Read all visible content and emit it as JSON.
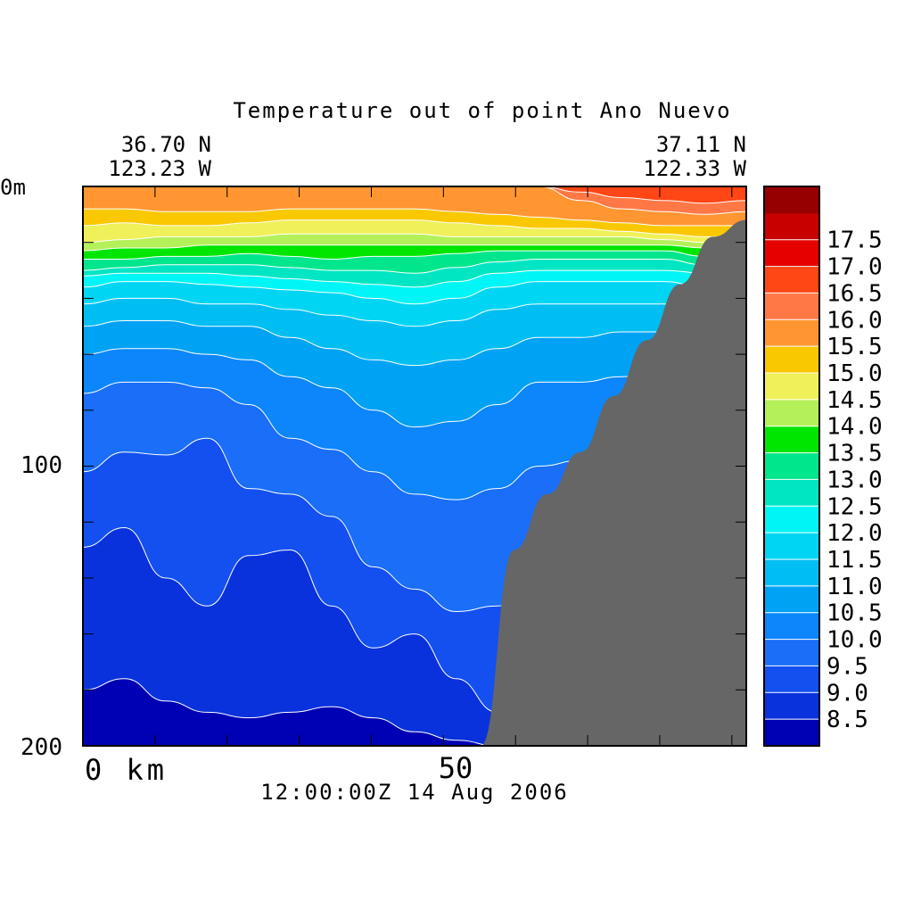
{
  "chart_data": {
    "type": "heatmap",
    "title": "Temperature out of point Ano Nuevo",
    "start_lat": "36.70 N",
    "start_lon": "123.23 W",
    "end_lat": "37.11 N",
    "end_lon": "122.33 W",
    "timestamp": "12:00:00Z  14 Aug 2006",
    "xlabel_start": "0 km",
    "x_tick_label": "50",
    "x_range_km": [
      0,
      92
    ],
    "y_tick_labels": [
      "0m",
      "100",
      "200"
    ],
    "y_range_m": [
      0,
      200
    ],
    "y_reversed": true,
    "unit_hint": "degrees C",
    "colorbar": {
      "levels": [
        8.5,
        9.0,
        9.5,
        10.0,
        10.5,
        11.0,
        11.5,
        12.0,
        12.5,
        13.0,
        13.5,
        14.0,
        14.5,
        15.0,
        15.5,
        16.0,
        16.5,
        17.0,
        17.5
      ],
      "labels": [
        "8.5",
        "9.0",
        "9.5",
        "10.0",
        "10.5",
        "11.0",
        "11.5",
        "12.0",
        "12.5",
        "13.0",
        "13.5",
        "14.0",
        "14.5",
        "15.0",
        "15.5",
        "16.0",
        "16.5",
        "17.0",
        "17.5"
      ],
      "colors": [
        "#0000b4",
        "#0a32dc",
        "#1450f0",
        "#1a6ef8",
        "#0c86fa",
        "#00a2f4",
        "#00bef2",
        "#00d6f4",
        "#00f6f6",
        "#00e6c2",
        "#00e68c",
        "#00e600",
        "#b4f05a",
        "#f0f05a",
        "#fac800",
        "#ff9632",
        "#ff7846",
        "#ff4614",
        "#e60000",
        "#c80000",
        "#960000"
      ]
    },
    "contours": [
      {
        "level": 8.5,
        "depths": [
          180,
          176,
          184,
          188,
          190,
          188,
          186,
          190,
          195,
          198,
          200,
          200,
          200,
          200,
          200,
          200,
          200
        ]
      },
      {
        "level": 9.0,
        "depths": [
          129,
          122,
          140,
          150,
          132,
          130,
          150,
          165,
          160,
          176,
          188,
          185,
          190,
          196,
          196,
          186,
          190
        ]
      },
      {
        "level": 9.5,
        "depths": [
          102,
          95,
          96,
          90,
          108,
          110,
          118,
          136,
          144,
          152,
          150,
          142,
          138,
          134,
          136,
          140,
          128
        ]
      },
      {
        "level": 10.0,
        "depths": [
          74,
          70,
          70,
          72,
          78,
          90,
          94,
          102,
          110,
          112,
          108,
          100,
          98,
          96,
          90,
          88,
          90
        ]
      },
      {
        "level": 10.5,
        "depths": [
          60,
          58,
          58,
          60,
          62,
          68,
          72,
          80,
          86,
          84,
          78,
          70,
          70,
          68,
          66,
          68,
          70
        ]
      },
      {
        "level": 11.0,
        "depths": [
          50,
          48,
          48,
          50,
          50,
          54,
          58,
          62,
          64,
          62,
          58,
          54,
          54,
          52,
          52,
          54,
          56
        ]
      },
      {
        "level": 11.5,
        "depths": [
          42,
          40,
          40,
          42,
          42,
          44,
          46,
          48,
          50,
          48,
          44,
          42,
          42,
          42,
          42,
          44,
          46
        ]
      },
      {
        "level": 12.0,
        "depths": [
          36,
          34,
          34,
          35,
          36,
          37,
          38,
          40,
          42,
          40,
          36,
          34,
          34,
          34,
          34,
          36,
          38
        ]
      },
      {
        "level": 12.5,
        "depths": [
          32,
          31,
          31,
          31,
          32,
          33,
          34,
          35,
          36,
          34,
          31,
          30,
          30,
          30,
          30,
          31,
          33
        ]
      },
      {
        "level": 13.0,
        "depths": [
          30,
          29,
          28,
          28,
          28,
          29,
          30,
          30,
          31,
          29,
          27,
          26,
          26,
          26,
          26,
          28,
          30
        ]
      },
      {
        "level": 13.5,
        "depths": [
          26,
          26,
          25,
          25,
          24,
          25,
          26,
          25,
          25,
          24,
          23,
          23,
          23,
          23,
          23,
          25,
          27
        ]
      },
      {
        "level": 14.0,
        "depths": [
          23,
          22,
          22,
          21,
          21,
          21,
          21,
          21,
          21,
          21,
          21,
          21,
          21,
          21,
          21,
          22,
          24
        ]
      },
      {
        "level": 14.5,
        "depths": [
          20,
          19,
          18,
          18,
          18,
          17,
          17,
          17,
          17,
          18,
          18,
          18,
          18,
          18,
          19,
          20,
          21
        ]
      },
      {
        "level": 15.0,
        "depths": [
          14,
          13,
          14,
          14,
          13,
          12,
          12,
          12,
          12,
          13,
          14,
          15,
          15,
          16,
          17,
          18,
          18
        ]
      },
      {
        "level": 15.5,
        "depths": [
          8,
          8,
          9,
          9,
          9,
          8,
          8,
          8,
          8,
          9,
          10,
          11,
          12,
          13,
          14,
          14,
          14
        ]
      },
      {
        "level": 16.0,
        "depths": [
          0,
          0,
          0,
          0,
          0,
          0,
          0,
          0,
          0,
          0,
          0,
          0,
          5,
          8,
          9,
          10,
          9
        ]
      },
      {
        "level": 16.5,
        "depths": [
          0,
          0,
          0,
          0,
          0,
          0,
          0,
          0,
          0,
          0,
          0,
          0,
          2,
          4,
          5,
          6,
          5
        ]
      }
    ],
    "bathymetry_depths_m": [
      200,
      200,
      200,
      200,
      200,
      200,
      200,
      200,
      200,
      200,
      200,
      200,
      200,
      130,
      110,
      95,
      75,
      55,
      35,
      18,
      12
    ]
  }
}
